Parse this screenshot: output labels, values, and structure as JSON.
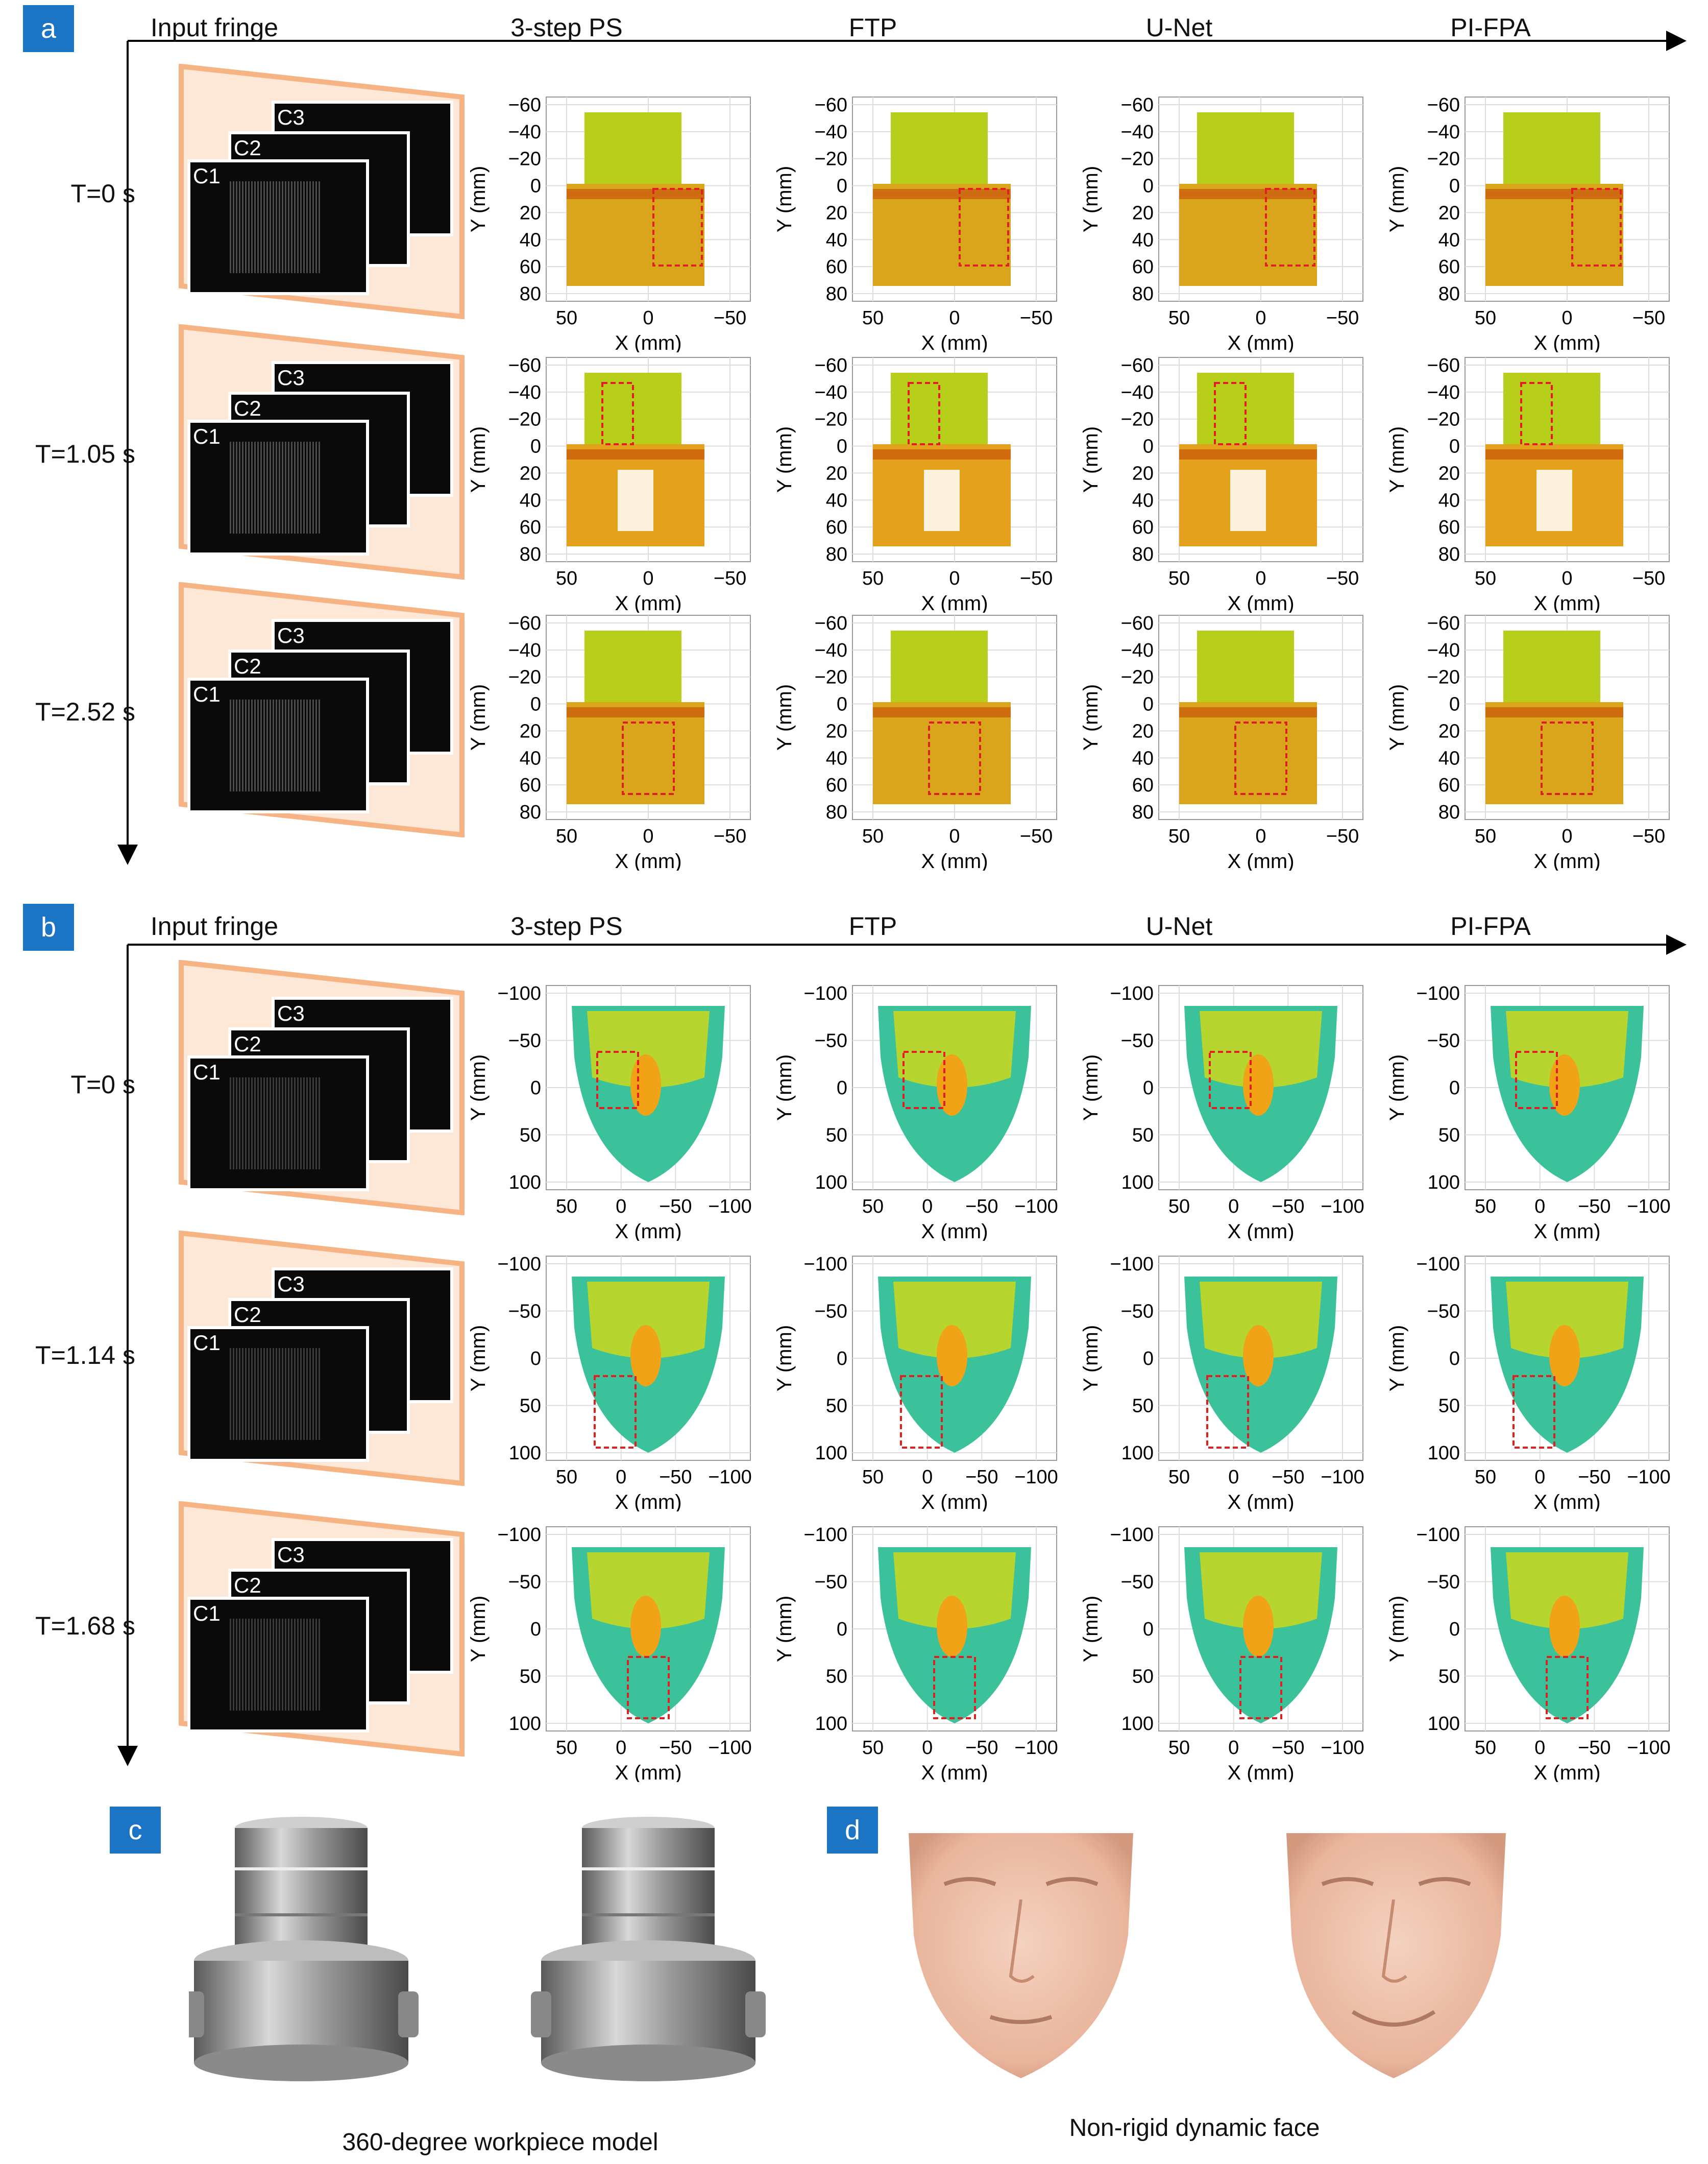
{
  "panel_labels": [
    "a",
    "b",
    "c",
    "d"
  ],
  "columns": [
    "Input fringe",
    "3-step PS",
    "FTP",
    "U-Net",
    "PI-FPA"
  ],
  "camera_labels": [
    "C1",
    "C2",
    "C3"
  ],
  "section_a": {
    "rows": [
      "T=0 s",
      "T=1.05 s",
      "T=2.52 s"
    ],
    "axes": {
      "xlabel": "X (mm)",
      "ylabel": "Y (mm)",
      "xticks": [
        "50",
        "0",
        "−50"
      ],
      "yticks": [
        "−60",
        "−40",
        "−20",
        "0",
        "20",
        "40",
        "60",
        "80"
      ]
    }
  },
  "section_b": {
    "rows": [
      "T=0 s",
      "T=1.14 s",
      "T=1.68 s"
    ],
    "axes": {
      "xlabel": "X (mm)",
      "ylabel": "Y (mm)",
      "xticks": [
        "50",
        "0",
        "−50",
        "−100"
      ],
      "yticks": [
        "−100",
        "−50",
        "0",
        "50",
        "100"
      ]
    }
  },
  "captions": {
    "c": "360-degree workpiece model",
    "d": "Non-rigid dynamic face"
  },
  "colors": {
    "tag_blue": "#1b74c4",
    "fringe_frame": "#f6b484",
    "fringe_bg": "#fde7d6",
    "roi_box": "#e02020",
    "face_render": "#eebfa8",
    "workpiece_render": "#9c9c9c"
  }
}
